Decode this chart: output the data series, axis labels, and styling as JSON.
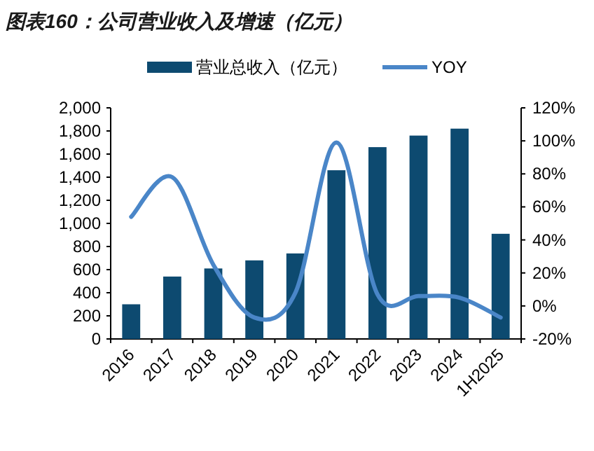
{
  "chart_data": {
    "type": "bar",
    "title": "图表160：公司营业收入及增速（亿元）",
    "categories": [
      "2016",
      "2017",
      "2018",
      "2019",
      "2020",
      "2021",
      "2022",
      "2023",
      "2024",
      "1H2025"
    ],
    "series": [
      {
        "name": "营业总收入（亿元）",
        "color": "#0d4a70",
        "values": [
          300,
          540,
          610,
          680,
          740,
          1460,
          1660,
          1760,
          1820,
          910
        ]
      },
      {
        "name": "YOY",
        "type": "line",
        "axis": "y2",
        "color": "#4a86c8",
        "values": [
          54,
          78,
          25,
          -7,
          8,
          99,
          7,
          6,
          5,
          -7
        ]
      }
    ],
    "ylim": [
      0,
      2000
    ],
    "yticks": [
      0,
      200,
      400,
      600,
      800,
      {
        "value": 1000,
        "label": "1,000"
      },
      {
        "value": 1200,
        "label": "1,200"
      },
      {
        "value": 1400,
        "label": "1,400"
      },
      {
        "value": 1600,
        "label": "1,600"
      },
      {
        "value": 1800,
        "label": "1,800"
      },
      {
        "value": 2000,
        "label": "2,000"
      }
    ],
    "y2lim": [
      -20,
      120
    ],
    "y2ticks": [
      {
        "value": -20,
        "label": "-20%"
      },
      {
        "value": 0,
        "label": "0%"
      },
      {
        "value": 20,
        "label": "20%"
      },
      {
        "value": 40,
        "label": "40%"
      },
      {
        "value": 60,
        "label": "60%"
      },
      {
        "value": 80,
        "label": "80%"
      },
      {
        "value": 100,
        "label": "100%"
      },
      {
        "value": 120,
        "label": "120%"
      }
    ],
    "legend": "top",
    "grid": false
  }
}
